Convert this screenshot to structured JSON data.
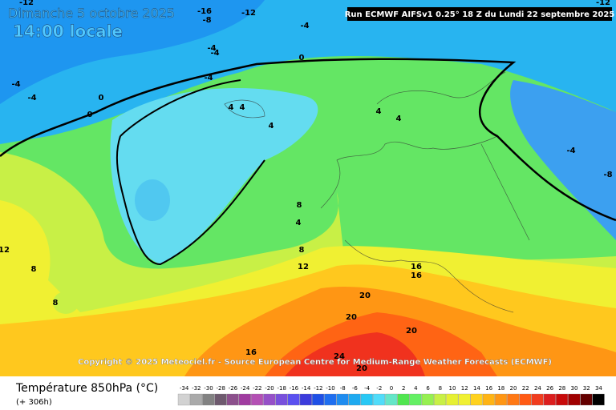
{
  "header": {
    "date": "Dimanche 5 octobre 2025",
    "time": "14:00 locale",
    "run": "Run ECMWF AIFSv1 0.25° 18 Z du Lundi 22 septembre 2025"
  },
  "copyright": "Copyright © 2025 Meteociel.fr - Source European Centre for Medium-Range Weather Forecasts (ECMWF)",
  "legend": {
    "title": "Température 850hPa (°C)",
    "lead": "(+ 306h)",
    "ticks": [
      -34,
      -32,
      -30,
      -28,
      -26,
      -24,
      -22,
      -20,
      -18,
      -16,
      -14,
      -12,
      -10,
      -8,
      -6,
      -4,
      -2,
      0,
      2,
      4,
      6,
      8,
      10,
      12,
      14,
      16,
      18,
      20,
      22,
      24,
      26,
      28,
      30,
      32,
      34
    ],
    "colors": [
      "#d2d2d2",
      "#aaaaaa",
      "#828282",
      "#6e5a6e",
      "#8c508c",
      "#a03ca0",
      "#b450b4",
      "#9650c8",
      "#7850dc",
      "#5a50f0",
      "#3c3cdc",
      "#1e50e6",
      "#1e6ef0",
      "#1e8cf0",
      "#1eaaf0",
      "#28c8f5",
      "#50dcfa",
      "#64e6c8",
      "#50e650",
      "#64f064",
      "#96f050",
      "#c8f046",
      "#e6f032",
      "#f0f032",
      "#ffd21e",
      "#ffb414",
      "#ff9614",
      "#ff7814",
      "#ff5a14",
      "#f03c1e",
      "#dc1e1e",
      "#c80a0a",
      "#a00000",
      "#640000",
      "#000000"
    ]
  },
  "contour_labels": [
    -12,
    -16,
    -12,
    -12,
    -8,
    -4,
    -4,
    -4,
    -4,
    -4,
    0,
    0,
    -4,
    0,
    4,
    4,
    4,
    4,
    4,
    -4,
    -8,
    8,
    4,
    12,
    8,
    8,
    12,
    8,
    16,
    16,
    20,
    20,
    20,
    16,
    24,
    20
  ]
}
